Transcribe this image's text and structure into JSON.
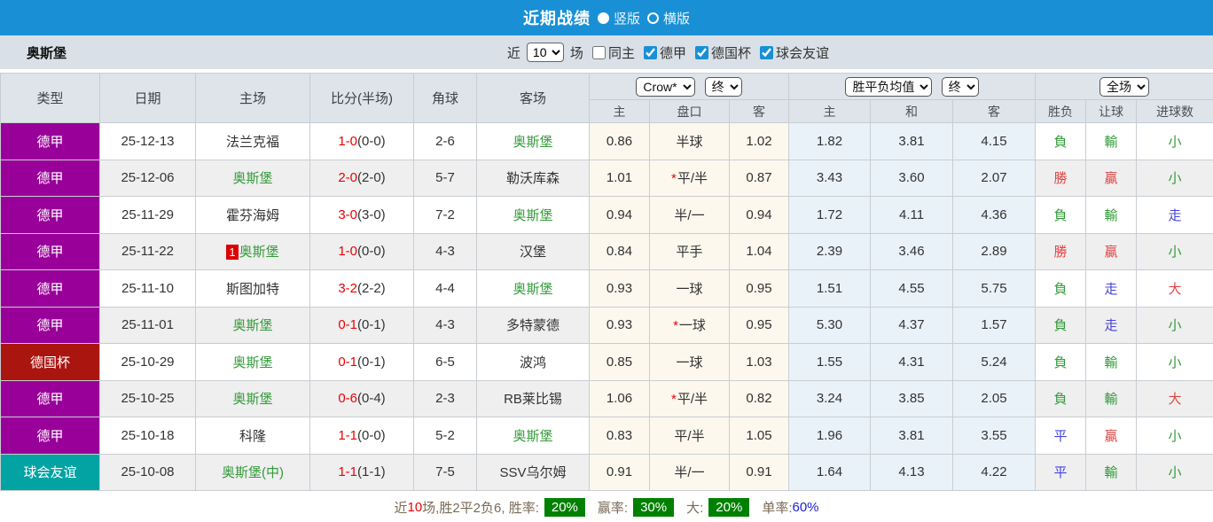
{
  "titlebar": {
    "title": "近期战绩",
    "options": [
      {
        "label": "竖版",
        "selected": true
      },
      {
        "label": "横版",
        "selected": false
      }
    ]
  },
  "filterbar": {
    "team": "奥斯堡",
    "near_label": "近",
    "count_value": "10",
    "count_suffix": "场",
    "checkboxes": [
      {
        "label": "同主",
        "checked": false
      },
      {
        "label": "德甲",
        "checked": true
      },
      {
        "label": "德国杯",
        "checked": true
      },
      {
        "label": "球会友谊",
        "checked": true
      }
    ]
  },
  "table": {
    "left_headers": [
      "类型",
      "日期",
      "主场",
      "比分(半场)",
      "角球",
      "客场"
    ],
    "dropdowns": {
      "odds_source": "Crow*",
      "odds_time": "终",
      "avg_source": "胜平负均值",
      "avg_time": "终",
      "scope": "全场"
    },
    "subheaders": [
      "主",
      "盘口",
      "客",
      "主",
      "和",
      "客",
      "胜负",
      "让球",
      "进球数"
    ],
    "rows": [
      {
        "type": {
          "label": "德甲",
          "color": "#990099"
        },
        "date": "25-12-13",
        "home": {
          "text": "法兰克福",
          "color": "black",
          "badge": ""
        },
        "score": {
          "full": "1-0",
          "half": "(0-0)"
        },
        "corners": "2-6",
        "away": {
          "text": "奥斯堡",
          "color": "green"
        },
        "odds": {
          "home": "0.86",
          "handicap": "半球",
          "star": false,
          "away": "1.02"
        },
        "avg": {
          "home": "1.82",
          "draw": "3.81",
          "away": "4.15"
        },
        "results": [
          {
            "t": "負",
            "c": "green"
          },
          {
            "t": "輸",
            "c": "green"
          },
          {
            "t": "小",
            "c": "green"
          }
        ]
      },
      {
        "type": {
          "label": "德甲",
          "color": "#990099"
        },
        "date": "25-12-06",
        "home": {
          "text": "奥斯堡",
          "color": "green",
          "badge": ""
        },
        "score": {
          "full": "2-0",
          "half": "(2-0)"
        },
        "corners": "5-7",
        "away": {
          "text": "勒沃库森",
          "color": "black"
        },
        "odds": {
          "home": "1.01",
          "handicap": "平/半",
          "star": true,
          "away": "0.87"
        },
        "avg": {
          "home": "3.43",
          "draw": "3.60",
          "away": "2.07"
        },
        "results": [
          {
            "t": "勝",
            "c": "red"
          },
          {
            "t": "贏",
            "c": "red"
          },
          {
            "t": "小",
            "c": "green"
          }
        ]
      },
      {
        "type": {
          "label": "德甲",
          "color": "#990099"
        },
        "date": "25-11-29",
        "home": {
          "text": "霍芬海姆",
          "color": "black",
          "badge": ""
        },
        "score": {
          "full": "3-0",
          "half": "(3-0)"
        },
        "corners": "7-2",
        "away": {
          "text": "奥斯堡",
          "color": "green"
        },
        "odds": {
          "home": "0.94",
          "handicap": "半/一",
          "star": false,
          "away": "0.94"
        },
        "avg": {
          "home": "1.72",
          "draw": "4.11",
          "away": "4.36"
        },
        "results": [
          {
            "t": "負",
            "c": "green"
          },
          {
            "t": "輸",
            "c": "green"
          },
          {
            "t": "走",
            "c": "blue"
          }
        ]
      },
      {
        "type": {
          "label": "德甲",
          "color": "#990099"
        },
        "date": "25-11-22",
        "home": {
          "text": "奥斯堡",
          "color": "green",
          "badge": "1"
        },
        "score": {
          "full": "1-0",
          "half": "(0-0)"
        },
        "corners": "4-3",
        "away": {
          "text": "汉堡",
          "color": "black"
        },
        "odds": {
          "home": "0.84",
          "handicap": "平手",
          "star": false,
          "away": "1.04"
        },
        "avg": {
          "home": "2.39",
          "draw": "3.46",
          "away": "2.89"
        },
        "results": [
          {
            "t": "勝",
            "c": "red"
          },
          {
            "t": "贏",
            "c": "red"
          },
          {
            "t": "小",
            "c": "green"
          }
        ]
      },
      {
        "type": {
          "label": "德甲",
          "color": "#990099"
        },
        "date": "25-11-10",
        "home": {
          "text": "斯图加特",
          "color": "black",
          "badge": ""
        },
        "score": {
          "full": "3-2",
          "half": "(2-2)"
        },
        "corners": "4-4",
        "away": {
          "text": "奥斯堡",
          "color": "green"
        },
        "odds": {
          "home": "0.93",
          "handicap": "一球",
          "star": false,
          "away": "0.95"
        },
        "avg": {
          "home": "1.51",
          "draw": "4.55",
          "away": "5.75"
        },
        "results": [
          {
            "t": "負",
            "c": "green"
          },
          {
            "t": "走",
            "c": "blue"
          },
          {
            "t": "大",
            "c": "red"
          }
        ]
      },
      {
        "type": {
          "label": "德甲",
          "color": "#990099"
        },
        "date": "25-11-01",
        "home": {
          "text": "奥斯堡",
          "color": "green",
          "badge": ""
        },
        "score": {
          "full": "0-1",
          "half": "(0-1)"
        },
        "corners": "4-3",
        "away": {
          "text": "多特蒙德",
          "color": "black"
        },
        "odds": {
          "home": "0.93",
          "handicap": "一球",
          "star": true,
          "away": "0.95"
        },
        "avg": {
          "home": "5.30",
          "draw": "4.37",
          "away": "1.57"
        },
        "results": [
          {
            "t": "負",
            "c": "green"
          },
          {
            "t": "走",
            "c": "blue"
          },
          {
            "t": "小",
            "c": "green"
          }
        ]
      },
      {
        "type": {
          "label": "德国杯",
          "color": "#aa1510"
        },
        "date": "25-10-29",
        "home": {
          "text": "奥斯堡",
          "color": "green",
          "badge": ""
        },
        "score": {
          "full": "0-1",
          "half": "(0-1)"
        },
        "corners": "6-5",
        "away": {
          "text": "波鸿",
          "color": "black"
        },
        "odds": {
          "home": "0.85",
          "handicap": "一球",
          "star": false,
          "away": "1.03"
        },
        "avg": {
          "home": "1.55",
          "draw": "4.31",
          "away": "5.24"
        },
        "results": [
          {
            "t": "負",
            "c": "green"
          },
          {
            "t": "輸",
            "c": "green"
          },
          {
            "t": "小",
            "c": "green"
          }
        ]
      },
      {
        "type": {
          "label": "德甲",
          "color": "#990099"
        },
        "date": "25-10-25",
        "home": {
          "text": "奥斯堡",
          "color": "green",
          "badge": ""
        },
        "score": {
          "full": "0-6",
          "half": "(0-4)"
        },
        "corners": "2-3",
        "away": {
          "text": "RB莱比锡",
          "color": "black"
        },
        "odds": {
          "home": "1.06",
          "handicap": "平/半",
          "star": true,
          "away": "0.82"
        },
        "avg": {
          "home": "3.24",
          "draw": "3.85",
          "away": "2.05"
        },
        "results": [
          {
            "t": "負",
            "c": "green"
          },
          {
            "t": "輸",
            "c": "green"
          },
          {
            "t": "大",
            "c": "red"
          }
        ]
      },
      {
        "type": {
          "label": "德甲",
          "color": "#990099"
        },
        "date": "25-10-18",
        "home": {
          "text": "科隆",
          "color": "black",
          "badge": ""
        },
        "score": {
          "full": "1-1",
          "half": "(0-0)"
        },
        "corners": "5-2",
        "away": {
          "text": "奥斯堡",
          "color": "green"
        },
        "odds": {
          "home": "0.83",
          "handicap": "平/半",
          "star": false,
          "away": "1.05"
        },
        "avg": {
          "home": "1.96",
          "draw": "3.81",
          "away": "3.55"
        },
        "results": [
          {
            "t": "平",
            "c": "blue"
          },
          {
            "t": "贏",
            "c": "red"
          },
          {
            "t": "小",
            "c": "green"
          }
        ]
      },
      {
        "type": {
          "label": "球会友谊",
          "color": "#01a3a3"
        },
        "date": "25-10-08",
        "home": {
          "text": "奥斯堡(中)",
          "color": "green",
          "badge": ""
        },
        "score": {
          "full": "1-1",
          "half": "(1-1)"
        },
        "corners": "7-5",
        "away": {
          "text": "SSV乌尔姆",
          "color": "black"
        },
        "odds": {
          "home": "0.91",
          "handicap": "半/一",
          "star": false,
          "away": "0.91"
        },
        "avg": {
          "home": "1.64",
          "draw": "4.13",
          "away": "4.22"
        },
        "results": [
          {
            "t": "平",
            "c": "blue"
          },
          {
            "t": "輸",
            "c": "green"
          },
          {
            "t": "小",
            "c": "green"
          }
        ]
      }
    ]
  },
  "summary": {
    "near_label": "近",
    "count": "10",
    "record_text": "场,胜2平2负6, 胜率:",
    "win_rate": "20%",
    "handicap_label": "赢率:",
    "handicap_rate": "30%",
    "big_label": "大:",
    "big_rate": "20%",
    "single_label": "单率:",
    "single_rate": "60%"
  },
  "colors": {
    "topbar_blue": "#1990d5",
    "league_purple": "#990099",
    "cup_darkred": "#aa1510",
    "friendly_teal": "#01a3a3",
    "team_green": "#339a39",
    "score_red": "#ee0000",
    "result_red": "#e24444",
    "result_blue": "#4444dd",
    "badge_green": "#008000",
    "crow_bg": "#fcf8ee",
    "avg_bg": "#e9f2f9"
  }
}
